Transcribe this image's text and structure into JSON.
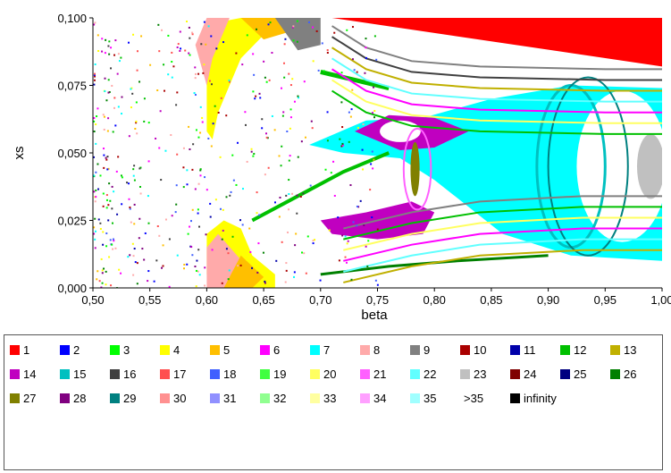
{
  "chart_data": {
    "type": "heatmap",
    "title": "",
    "xlabel": "beta",
    "ylabel": "xs",
    "xlim": [
      0.5,
      1.0
    ],
    "ylim": [
      0.0,
      0.1
    ],
    "x_ticks": [
      "0,50",
      "0,55",
      "0,60",
      "0,65",
      "0,70",
      "0,75",
      "0,80",
      "0,85",
      "0,90",
      "0,95",
      "1,00"
    ],
    "y_ticks": [
      "0,000",
      "0,025",
      "0,050",
      "0,075",
      "0,100"
    ],
    "x_tick_values": [
      0.5,
      0.55,
      0.6,
      0.65,
      0.7,
      0.75,
      0.8,
      0.85,
      0.9,
      0.95,
      1.0
    ],
    "y_tick_values": [
      0,
      0.025,
      0.05,
      0.075,
      0.1
    ],
    "grid": false,
    "legend_placement": "bottom",
    "legend": [
      {
        "label": "1",
        "color": "#ff0000"
      },
      {
        "label": "2",
        "color": "#0000ff"
      },
      {
        "label": "3",
        "color": "#00ff00"
      },
      {
        "label": "4",
        "color": "#ffff00"
      },
      {
        "label": "5",
        "color": "#ffbf00"
      },
      {
        "label": "6",
        "color": "#ff00ff"
      },
      {
        "label": "7",
        "color": "#00ffff"
      },
      {
        "label": "8",
        "color": "#ffaaaa"
      },
      {
        "label": "9",
        "color": "#808080"
      },
      {
        "label": "10",
        "color": "#aa0000"
      },
      {
        "label": "11",
        "color": "#0000aa"
      },
      {
        "label": "12",
        "color": "#00c000"
      },
      {
        "label": "13",
        "color": "#c0b000"
      },
      {
        "label": "14",
        "color": "#c000c0"
      },
      {
        "label": "15",
        "color": "#00c0c0"
      },
      {
        "label": "16",
        "color": "#404040"
      },
      {
        "label": "17",
        "color": "#ff5050"
      },
      {
        "label": "18",
        "color": "#4060ff"
      },
      {
        "label": "19",
        "color": "#40ff40"
      },
      {
        "label": "20",
        "color": "#ffff60"
      },
      {
        "label": "21",
        "color": "#ff60ff"
      },
      {
        "label": "22",
        "color": "#60ffff"
      },
      {
        "label": "23",
        "color": "#c0c0c0"
      },
      {
        "label": "24",
        "color": "#800000"
      },
      {
        "label": "25",
        "color": "#000080"
      },
      {
        "label": "26",
        "color": "#008000"
      },
      {
        "label": "27",
        "color": "#808000"
      },
      {
        "label": "28",
        "color": "#800080"
      },
      {
        "label": "29",
        "color": "#008080"
      },
      {
        "label": "30",
        "color": "#ff9090"
      },
      {
        "label": "31",
        "color": "#9090ff"
      },
      {
        "label": "32",
        "color": "#90ff90"
      },
      {
        "label": "33",
        "color": "#ffffa0"
      },
      {
        "label": "34",
        "color": "#ffa0ff"
      },
      {
        "label": "35",
        "color": "#a0ffff"
      },
      {
        "label": ">35",
        "color": "#ffffff"
      },
      {
        "label": "infinity",
        "color": "#000000"
      }
    ]
  }
}
